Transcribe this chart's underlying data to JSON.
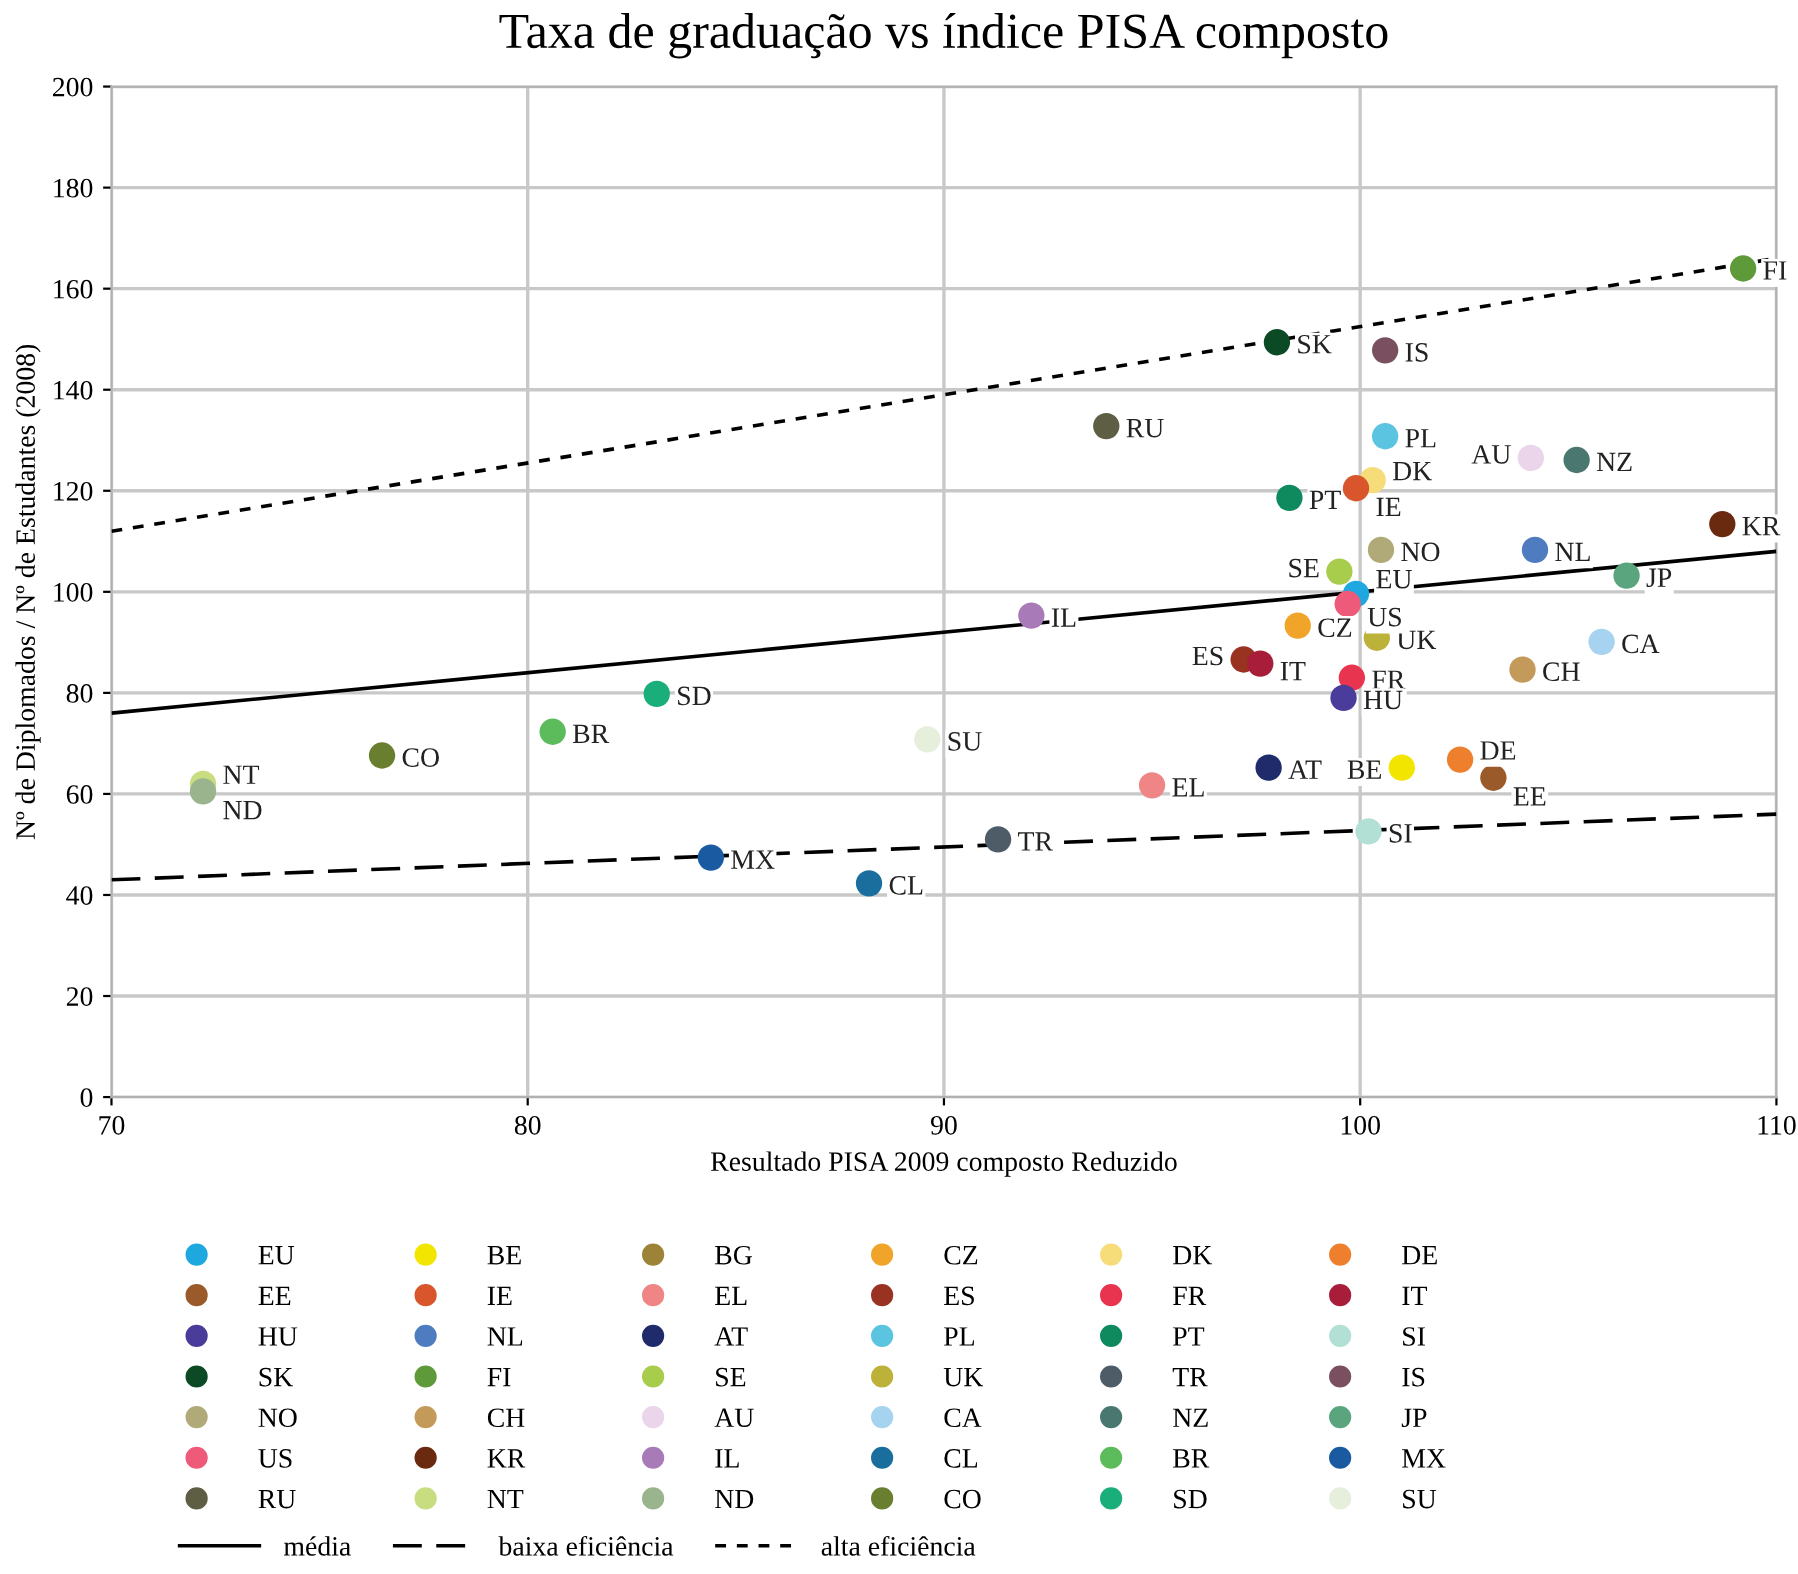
{
  "chart_data": {
    "type": "scatter",
    "title": "Taxa de graduação vs índice PISA composto",
    "xlabel": "Resultado PISA 2009 composto Reduzido",
    "ylabel": "Nº de Diplomados / Nº de Estudantes (2008)",
    "xlim": [
      70,
      110
    ],
    "xticks": [
      70,
      80,
      90,
      100,
      110
    ],
    "ylim": [
      0,
      200
    ],
    "yticks": [
      0,
      20,
      40,
      60,
      80,
      100,
      120,
      140,
      160,
      180,
      200
    ],
    "grid": true,
    "legend": "bottom",
    "marker": "circle",
    "series": [
      {
        "name": "EU",
        "color": "#1fa8e0",
        "x": [
          99.9
        ],
        "values": [
          99.6
        ]
      },
      {
        "name": "BE",
        "color": "#f2e600",
        "x": [
          101.0
        ],
        "values": [
          65.2
        ]
      },
      {
        "name": "BG",
        "color": "#9c8338",
        "x": [
          null
        ],
        "values": [
          null
        ]
      },
      {
        "name": "CZ",
        "color": "#f0a42a",
        "x": [
          98.5
        ],
        "values": [
          93.3
        ]
      },
      {
        "name": "DK",
        "color": "#f7dc7a",
        "x": [
          100.3
        ],
        "values": [
          122.1
        ]
      },
      {
        "name": "DE",
        "color": "#ee7f2d",
        "x": [
          102.4
        ],
        "values": [
          66.8
        ]
      },
      {
        "name": "EE",
        "color": "#9a5a2a",
        "x": [
          103.2
        ],
        "values": [
          63.2
        ]
      },
      {
        "name": "IE",
        "color": "#d9552b",
        "x": [
          99.9
        ],
        "values": [
          120.5
        ]
      },
      {
        "name": "EL",
        "color": "#ef8585",
        "x": [
          95.0
        ],
        "values": [
          61.7
        ]
      },
      {
        "name": "ES",
        "color": "#9a3222",
        "x": [
          97.2
        ],
        "values": [
          86.6
        ]
      },
      {
        "name": "FR",
        "color": "#e8344f",
        "x": [
          99.8
        ],
        "values": [
          83.0
        ]
      },
      {
        "name": "IT",
        "color": "#a81e3a",
        "x": [
          97.6
        ],
        "values": [
          85.8
        ]
      },
      {
        "name": "HU",
        "color": "#4a3c9a",
        "x": [
          99.6
        ],
        "values": [
          79.0
        ]
      },
      {
        "name": "NL",
        "color": "#4f7cc0",
        "x": [
          104.2
        ],
        "values": [
          108.3
        ]
      },
      {
        "name": "AT",
        "color": "#1f2b6a",
        "x": [
          97.8
        ],
        "values": [
          65.2
        ]
      },
      {
        "name": "PL",
        "color": "#5bc4e0",
        "x": [
          100.6
        ],
        "values": [
          130.8
        ]
      },
      {
        "name": "PT",
        "color": "#0e8a5e",
        "x": [
          98.3
        ],
        "values": [
          118.6
        ]
      },
      {
        "name": "SI",
        "color": "#b2e0d4",
        "x": [
          100.2
        ],
        "values": [
          52.6
        ]
      },
      {
        "name": "SK",
        "color": "#0b4a25",
        "x": [
          98.0
        ],
        "values": [
          149.4
        ]
      },
      {
        "name": "FI",
        "color": "#5f9a3a",
        "x": [
          109.2
        ],
        "values": [
          164.0
        ]
      },
      {
        "name": "SE",
        "color": "#a8cc4c",
        "x": [
          99.5
        ],
        "values": [
          104.0
        ]
      },
      {
        "name": "UK",
        "color": "#bcb23a",
        "x": [
          100.4
        ],
        "values": [
          90.9
        ]
      },
      {
        "name": "TR",
        "color": "#4e5c68",
        "x": [
          91.3
        ],
        "values": [
          51.0
        ]
      },
      {
        "name": "IS",
        "color": "#7a5060",
        "x": [
          100.6
        ],
        "values": [
          147.8
        ]
      },
      {
        "name": "NO",
        "color": "#b0aa78",
        "x": [
          100.5
        ],
        "values": [
          108.3
        ]
      },
      {
        "name": "CH",
        "color": "#c49a5a",
        "x": [
          103.9
        ],
        "values": [
          84.6
        ]
      },
      {
        "name": "AU",
        "color": "#ead5ea",
        "x": [
          104.1
        ],
        "values": [
          126.5
        ]
      },
      {
        "name": "CA",
        "color": "#a6d3f0",
        "x": [
          105.8
        ],
        "values": [
          90.1
        ]
      },
      {
        "name": "NZ",
        "color": "#4a7870",
        "x": [
          105.2
        ],
        "values": [
          126.1
        ]
      },
      {
        "name": "JP",
        "color": "#5aa57e",
        "x": [
          106.4
        ],
        "values": [
          103.2
        ]
      },
      {
        "name": "US",
        "color": "#ee5a7a",
        "x": [
          99.7
        ],
        "values": [
          97.6
        ]
      },
      {
        "name": "KR",
        "color": "#6a2a10",
        "x": [
          108.7
        ],
        "values": [
          113.4
        ]
      },
      {
        "name": "IL",
        "color": "#a87ab8",
        "x": [
          92.1
        ],
        "values": [
          95.3
        ]
      },
      {
        "name": "CL",
        "color": "#1a6e9e",
        "x": [
          88.2
        ],
        "values": [
          42.3
        ]
      },
      {
        "name": "BR",
        "color": "#5cbc5c",
        "x": [
          80.6
        ],
        "values": [
          72.3
        ]
      },
      {
        "name": "MX",
        "color": "#1a5aa0",
        "x": [
          84.4
        ],
        "values": [
          47.4
        ]
      },
      {
        "name": "RU",
        "color": "#5e5e44",
        "x": [
          93.9
        ],
        "values": [
          132.8
        ]
      },
      {
        "name": "NT",
        "color": "#c8dc80",
        "x": [
          72.2
        ],
        "values": [
          62.0
        ]
      },
      {
        "name": "ND",
        "color": "#9ab48e",
        "x": [
          72.2
        ],
        "values": [
          60.5
        ]
      },
      {
        "name": "CO",
        "color": "#6a7e30",
        "x": [
          76.5
        ],
        "values": [
          67.6
        ]
      },
      {
        "name": "SD",
        "color": "#1aae7a",
        "x": [
          83.1
        ],
        "values": [
          79.8
        ]
      },
      {
        "name": "SU",
        "color": "#e6eedc",
        "x": [
          89.6
        ],
        "values": [
          70.8
        ]
      },
      {
        "name": "média",
        "type": "line",
        "marker": "none",
        "color": "#000000",
        "line_style": "solid",
        "x": [
          70,
          110
        ],
        "values": [
          76,
          108
        ]
      },
      {
        "name": "baixa eficiência",
        "type": "line",
        "marker": "none",
        "color": "#000000",
        "line_style": "dashed",
        "x": [
          70,
          110
        ],
        "values": [
          43,
          56
        ]
      },
      {
        "name": "alta eficiência",
        "type": "line",
        "marker": "none",
        "color": "#000000",
        "line_style": "dotted",
        "x": [
          70,
          110
        ],
        "values": [
          112,
          166
        ]
      }
    ]
  }
}
